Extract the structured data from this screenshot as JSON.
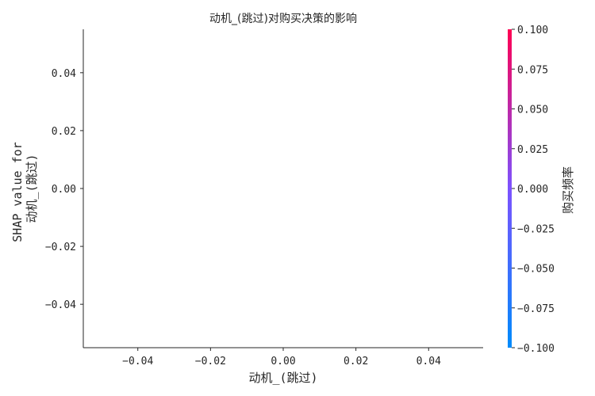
{
  "chart_data": {
    "type": "scatter",
    "title": "动机_(跳过)对购买决策的影响",
    "xlabel": "动机_(跳过)",
    "ylabel_lines": [
      "SHAP value for",
      "动机_(跳过)"
    ],
    "xlim": [
      -0.055,
      0.055
    ],
    "ylim": [
      -0.055,
      0.055
    ],
    "x_ticks": [
      -0.04,
      -0.02,
      0.0,
      0.02,
      0.04
    ],
    "x_tick_labels": [
      "−0.04",
      "−0.02",
      "0.00",
      "0.02",
      "0.04"
    ],
    "y_ticks": [
      0.04,
      0.02,
      0.0,
      -0.02,
      -0.04
    ],
    "y_tick_labels": [
      "0.04",
      "0.02",
      "0.00",
      "−0.02",
      "−0.04"
    ],
    "points": [],
    "grid": false,
    "colorbar": {
      "label": "购买频率",
      "range": [
        -0.1,
        0.1
      ],
      "ticks": [
        0.1,
        0.075,
        0.05,
        0.025,
        0.0,
        -0.025,
        -0.05,
        -0.075,
        -0.1
      ],
      "tick_labels": [
        "0.100",
        "0.075",
        "0.050",
        "0.025",
        "0.000",
        "−0.025",
        "−0.050",
        "−0.075",
        "−0.100"
      ],
      "color_low": "#008bfb",
      "color_mid": "#7c52ff",
      "color_high": "#ff0052"
    }
  }
}
